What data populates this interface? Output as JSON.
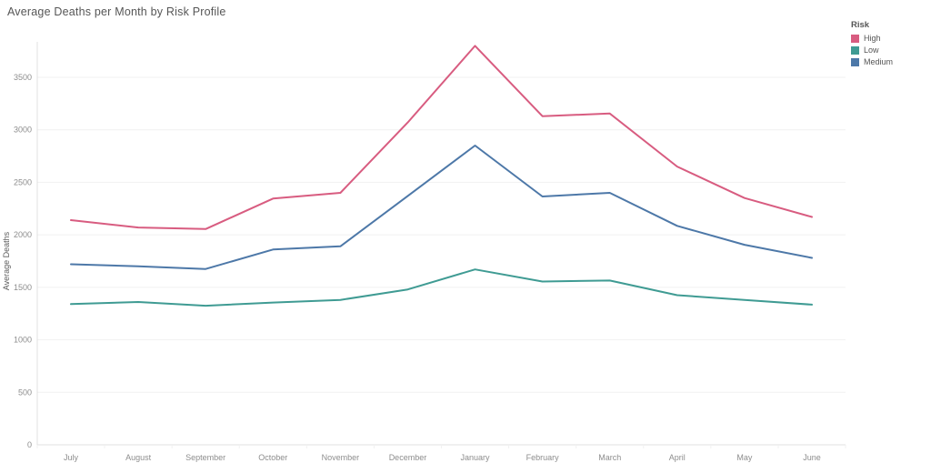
{
  "title": "Average Deaths per Month by Risk Profile",
  "legend": {
    "title": "Risk"
  },
  "chart_data": {
    "type": "line",
    "title": "Average Deaths per Month by Risk Profile",
    "xlabel": "",
    "ylabel": "Average Deaths",
    "categories": [
      "July",
      "August",
      "September",
      "October",
      "November",
      "December",
      "January",
      "February",
      "March",
      "April",
      "May",
      "June"
    ],
    "series": [
      {
        "name": "High",
        "color": "#d85c80",
        "values": [
          2140,
          2070,
          2055,
          2345,
          2400,
          3070,
          3800,
          3130,
          3155,
          2650,
          2350,
          2170
        ]
      },
      {
        "name": "Low",
        "color": "#3f9b93",
        "values": [
          1340,
          1360,
          1325,
          1355,
          1380,
          1480,
          1670,
          1555,
          1565,
          1425,
          1380,
          1335
        ]
      },
      {
        "name": "Medium",
        "color": "#4d78a8",
        "values": [
          1720,
          1700,
          1675,
          1860,
          1890,
          2370,
          2850,
          2365,
          2400,
          2085,
          1905,
          1780
        ]
      }
    ],
    "ylim": [
      0,
      3500
    ],
    "yticks": [
      0,
      500,
      1000,
      1500,
      2000,
      2500,
      3000,
      3500
    ],
    "grid": true,
    "legend_position": "top-right",
    "colors": {
      "grid": "#f1f1f1",
      "axis": "#e0e0e0",
      "tick_text": "#8d8d8d"
    }
  }
}
